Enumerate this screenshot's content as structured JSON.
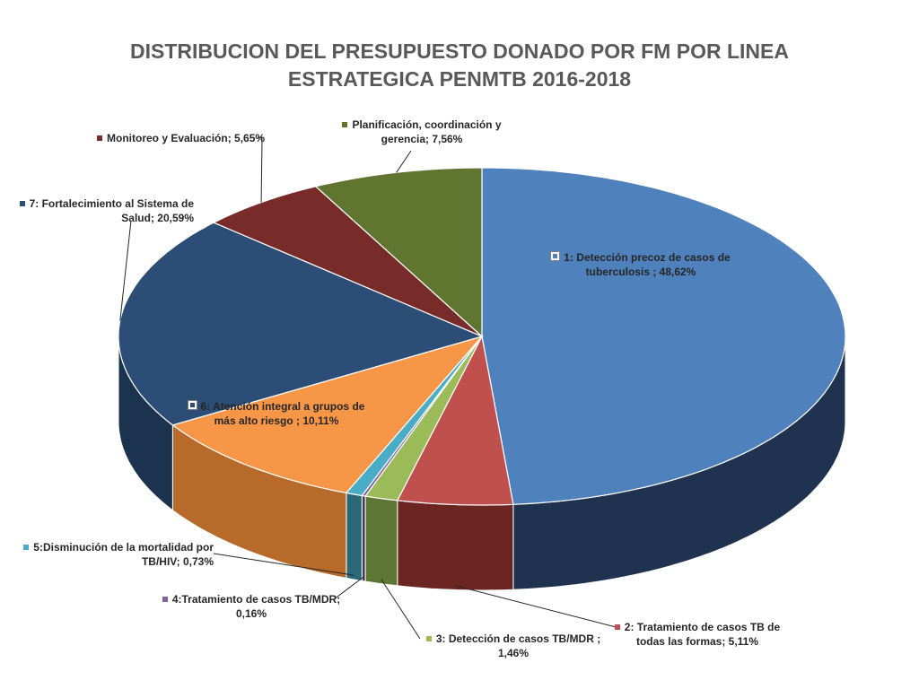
{
  "title": {
    "line1": "DISTRIBUCION DEL PRESUPUESTO DONADO POR FM POR LINEA",
    "line2": "ESTRATEGICA PENMTB  2016-2018"
  },
  "chart_data": {
    "type": "pie",
    "title": "DISTRIBUCION DEL PRESUPUESTO DONADO POR FM POR LINEA ESTRATEGICA PENMTB  2016-2018",
    "slices": [
      {
        "label_line1": "1: Detección precoz  de casos de",
        "label_line2": "tuberculosis ; 48,62%",
        "value": 48.62,
        "color": "#4f81bd",
        "side": "#1f3250"
      },
      {
        "label_line1": "2: Tratamiento de  casos TB de",
        "label_line2": "todas las formas; 5,11%",
        "value": 5.11,
        "color": "#c0504d",
        "side": "#6b2523"
      },
      {
        "label_line1": "3: Detección de  casos TB/MDR ;",
        "label_line2": "1,46%",
        "value": 1.46,
        "color": "#9bbb59",
        "side": "#5d7633"
      },
      {
        "label_line1": "4:Tratamiento de casos TB/MDR;",
        "label_line2": "0,16%",
        "value": 0.16,
        "color": "#8064a2",
        "side": "#4a3a60"
      },
      {
        "label_line1": "5:Disminución de la mortalidad por",
        "label_line2": "TB/HIV; 0,73%",
        "value": 0.73,
        "color": "#4bacc6",
        "side": "#2a6878"
      },
      {
        "label_line1": "6: Atención integral a grupos de",
        "label_line2": "más alto riesgo ; 10,11%",
        "value": 10.11,
        "color": "#f79646",
        "side": "#b86a2a"
      },
      {
        "label_line1": "7: Fortalecimiento al Sistema de",
        "label_line2": "Salud; 20,59%",
        "value": 20.59,
        "color": "#2c4d75",
        "side": "#1c3350"
      },
      {
        "label_line1": "Monitoreo y Evaluación; 5,65%",
        "label_line2": "",
        "value": 5.65,
        "color": "#772c2a",
        "side": "#4a1a19"
      },
      {
        "label_line1": "Planificación, coordinación y",
        "label_line2": "gerencia; 7,56%",
        "value": 7.56,
        "color": "#5f7530",
        "side": "#3b4a1d"
      }
    ]
  }
}
